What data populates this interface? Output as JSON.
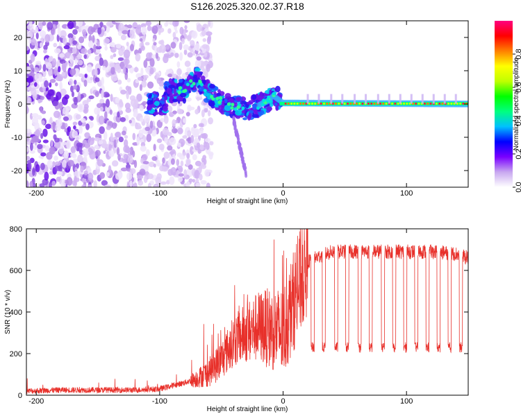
{
  "title": "S126.2025.320.02.37.R18",
  "chart_data": [
    {
      "type": "heatmap",
      "name": "spectrogram",
      "xlabel": "Height of straight line (km)",
      "ylabel": "Frequency (Hz)",
      "xlim": [
        -208,
        150
      ],
      "ylim": [
        -25,
        25
      ],
      "xticks": [
        -200,
        -100,
        0,
        100
      ],
      "yticks": [
        -20,
        -10,
        0,
        10,
        20
      ],
      "description_trend": [
        {
          "x": -95,
          "y": 4
        },
        {
          "x": -80,
          "y": 4
        },
        {
          "x": -70,
          "y": 8
        },
        {
          "x": -60,
          "y": 3
        },
        {
          "x": -50,
          "y": 1
        },
        {
          "x": -40,
          "y": -1
        },
        {
          "x": -30,
          "y": -1.5
        },
        {
          "x": -20,
          "y": -0.5
        },
        {
          "x": -12,
          "y": 1
        },
        {
          "x": -8,
          "y": 2.5
        },
        {
          "x": 0,
          "y": 0.3
        },
        {
          "x": 150,
          "y": 0
        }
      ],
      "colorbar": {
        "label": "Normalized spectral amplitude",
        "range": [
          0,
          1
        ],
        "ticks": [
          0.0,
          0.2,
          0.4,
          0.6,
          0.8
        ],
        "tick_labels": [
          "0.0",
          "0.2",
          "0.4",
          "0.6",
          "0.8"
        ],
        "colors": [
          "#ffffff",
          "#c8a8f0",
          "#7a00ff",
          "#0000ff",
          "#00c0ff",
          "#00ff80",
          "#00ff00",
          "#c0ff00",
          "#ffff00",
          "#ff8000",
          "#ff0000",
          "#ff0080"
        ]
      }
    },
    {
      "type": "line",
      "name": "snr",
      "xlabel": "Height of straight line (km)",
      "ylabel": "SNR (10 * v/v)",
      "xlim": [
        -208,
        150
      ],
      "ylim": [
        0,
        800
      ],
      "xticks": [
        -200,
        -100,
        0,
        100
      ],
      "yticks": [
        0,
        200,
        400,
        600,
        800
      ],
      "series": [
        {
          "name": "SNR",
          "color": "#e8302a",
          "x": [
            -208,
            -180,
            -150,
            -120,
            -100,
            -90,
            -80,
            -70,
            -60,
            -50,
            -40,
            -30,
            -20,
            -10,
            0,
            10,
            20,
            30,
            40,
            60,
            80,
            100,
            120,
            140,
            150
          ],
          "y": [
            20,
            25,
            25,
            25,
            30,
            45,
            60,
            80,
            110,
            170,
            260,
            300,
            330,
            320,
            300,
            480,
            640,
            670,
            690,
            690,
            690,
            690,
            690,
            680,
            660
          ]
        }
      ],
      "dropout_x": [
        24,
        33,
        43,
        52,
        62,
        71,
        81,
        90,
        99,
        108,
        117,
        126,
        135,
        144
      ],
      "dropout_level": 230
    }
  ]
}
